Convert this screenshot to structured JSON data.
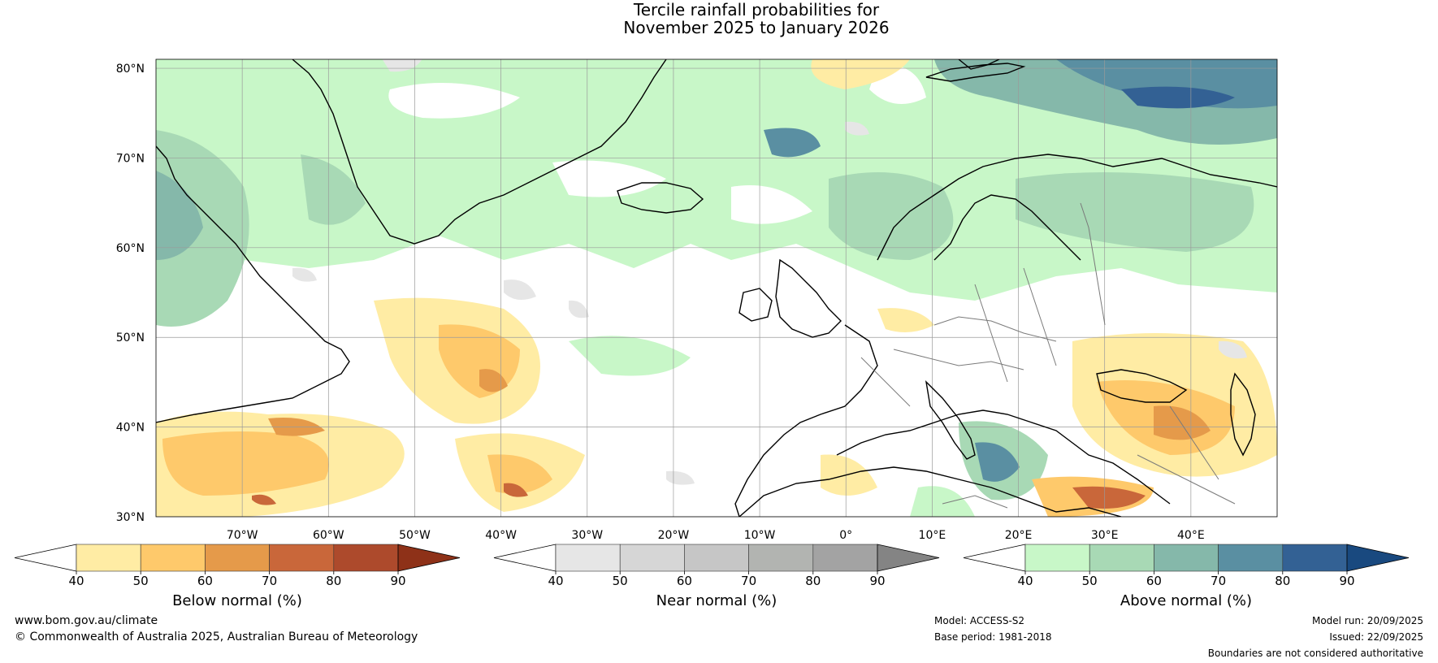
{
  "title": {
    "line1": "Tercile rainfall probabilities for",
    "line2": "November 2025 to January 2026"
  },
  "map": {
    "lon_range": [
      -80,
      50
    ],
    "lat_range": [
      30,
      81
    ],
    "lat_labels": [
      "80°N",
      "70°N",
      "60°N",
      "50°N",
      "40°N",
      "30°N"
    ],
    "lon_labels": [
      "70°W",
      "60°W",
      "50°W",
      "40°W",
      "30°W",
      "20°W",
      "10°W",
      "0°",
      "10°E",
      "20°E",
      "30°E",
      "40°E"
    ],
    "gridline_color": "#9a9a9a",
    "coast_color": "#000000",
    "border_color": "#7a7a7a"
  },
  "legends": {
    "below": {
      "label": "Below normal (%)",
      "ticks": [
        "40",
        "50",
        "60",
        "70",
        "80",
        "90"
      ],
      "colors": [
        "#ffffff",
        "#ffeca4",
        "#fec96b",
        "#e59a4a",
        "#c9673a",
        "#ad4a2c",
        "#8e3118"
      ]
    },
    "near": {
      "label": "Near normal (%)",
      "ticks": [
        "40",
        "50",
        "60",
        "70",
        "80",
        "90"
      ],
      "colors": [
        "#ffffff",
        "#e6e6e6",
        "#d6d6d6",
        "#c6c6c6",
        "#b2b4b1",
        "#a3a3a3",
        "#848484"
      ]
    },
    "above": {
      "label": "Above normal (%)",
      "ticks": [
        "40",
        "50",
        "60",
        "70",
        "80",
        "90"
      ],
      "colors": [
        "#ffffff",
        "#c8f7c8",
        "#a8d9b5",
        "#85b8aa",
        "#5a8fa2",
        "#336194",
        "#19497f"
      ]
    }
  },
  "footer": {
    "website": "www.bom.gov.au/climate",
    "copyright": "© Commonwealth of Australia 2025, Australian Bureau of Meteorology",
    "model": "Model: ACCESS-S2",
    "base_period": "Base period: 1981-2018",
    "model_run": "Model run: 20/09/2025",
    "issued": "Issued: 22/09/2025",
    "disclaimer": "Boundaries are not considered authoritative"
  }
}
